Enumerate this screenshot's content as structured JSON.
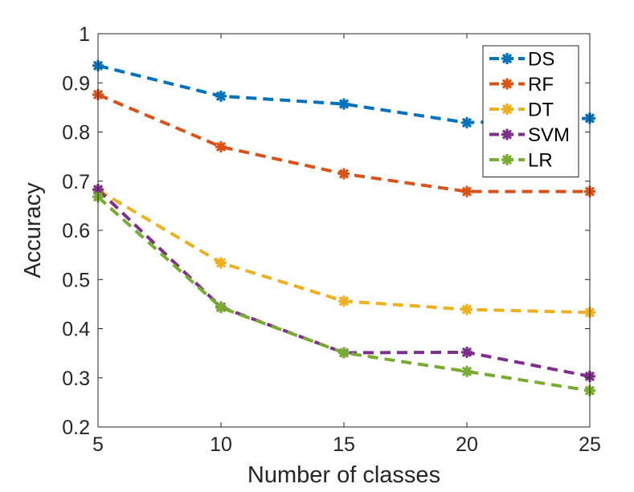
{
  "chart_data": {
    "type": "line",
    "title": "",
    "xlabel": "Number of classes",
    "ylabel": "Accuracy",
    "x": [
      5,
      10,
      15,
      20,
      25
    ],
    "xlim": [
      5,
      25
    ],
    "ylim": [
      0.2,
      1
    ],
    "xticks": [
      5,
      10,
      15,
      20,
      25
    ],
    "xtick_labels": [
      "5",
      "10",
      "15",
      "20",
      "25"
    ],
    "yticks": [
      0.2,
      0.3,
      0.4,
      0.5,
      0.6,
      0.7,
      0.8,
      0.9,
      1
    ],
    "ytick_labels": [
      "0.2",
      "0.3",
      "0.4",
      "0.5",
      "0.6",
      "0.7",
      "0.8",
      "0.9",
      "1"
    ],
    "grid": false,
    "legend_position": "top-right",
    "series": [
      {
        "name": "DS",
        "color": "#0072BD",
        "values": [
          0.935,
          0.873,
          0.857,
          0.819,
          0.828
        ]
      },
      {
        "name": "RF",
        "color": "#D95319",
        "values": [
          0.876,
          0.77,
          0.715,
          0.679,
          0.679
        ]
      },
      {
        "name": "DT",
        "color": "#EDB120",
        "values": [
          0.682,
          0.534,
          0.456,
          0.439,
          0.433
        ]
      },
      {
        "name": "SVM",
        "color": "#7E2F8E",
        "values": [
          0.683,
          0.444,
          0.351,
          0.352,
          0.303
        ]
      },
      {
        "name": "LR",
        "color": "#77AC30",
        "values": [
          0.668,
          0.443,
          0.351,
          0.313,
          0.274
        ]
      }
    ]
  }
}
